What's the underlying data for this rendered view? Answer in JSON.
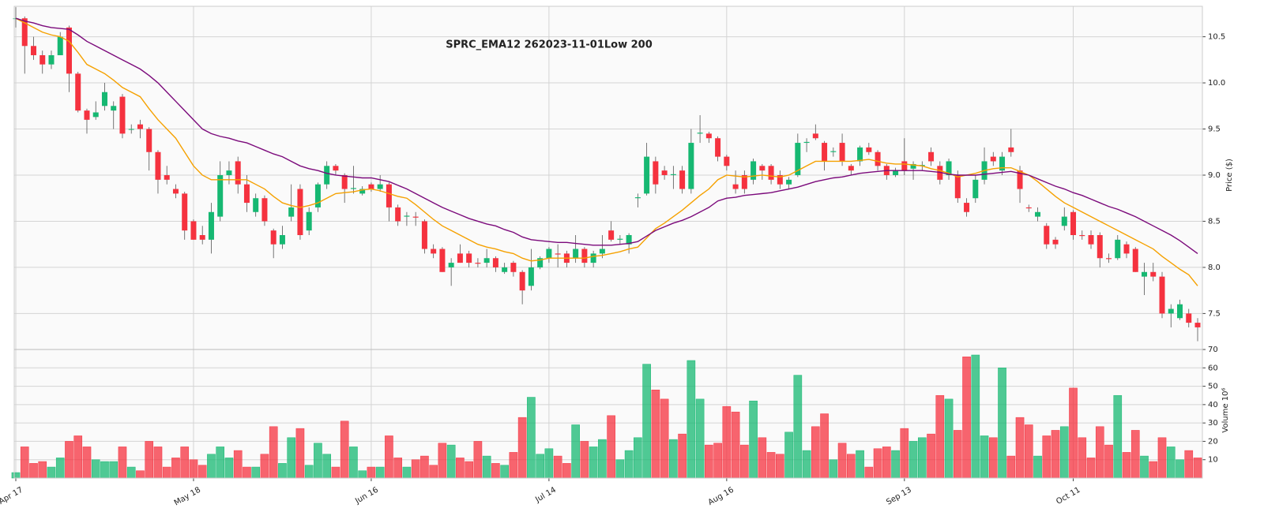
{
  "chart_data": {
    "type": "candlestick",
    "title": "SPRC_EMA12 262023-11-01Low 200",
    "ylabel": "Price ($)",
    "volume_ylabel": "Volume  10⁶",
    "up_color": "#16b872",
    "down_color": "#f5323f",
    "grid": true,
    "ylim": [
      7.11,
      10.83
    ],
    "yticks": [
      7.5,
      {
        "value": 8,
        "label": "8.0"
      },
      8.5,
      {
        "value": 9,
        "label": "9.0"
      },
      9.5,
      {
        "value": 10,
        "label": "10.0"
      },
      10.5
    ],
    "volume_lim": [
      0,
      70
    ],
    "volume_ticks": [
      10,
      20,
      30,
      40,
      50,
      60,
      70
    ],
    "categories": [
      "Apr 17",
      null,
      null,
      null,
      null,
      null,
      null,
      null,
      null,
      null,
      null,
      null,
      null,
      null,
      null,
      null,
      null,
      null,
      null,
      null,
      "May 18",
      null,
      null,
      null,
      null,
      null,
      null,
      null,
      null,
      null,
      null,
      null,
      null,
      null,
      null,
      null,
      null,
      null,
      null,
      null,
      "Jun 16",
      null,
      null,
      null,
      null,
      null,
      null,
      null,
      null,
      null,
      null,
      null,
      null,
      null,
      null,
      null,
      null,
      null,
      null,
      null,
      "Jul 14",
      null,
      null,
      null,
      null,
      null,
      null,
      null,
      null,
      null,
      null,
      null,
      null,
      null,
      null,
      null,
      null,
      null,
      null,
      null,
      "Aug 16",
      null,
      null,
      null,
      null,
      null,
      null,
      null,
      null,
      null,
      null,
      null,
      null,
      null,
      null,
      null,
      null,
      null,
      null,
      null,
      "Sep 13",
      null,
      null,
      null,
      null,
      null,
      null,
      null,
      null,
      null,
      null,
      null,
      null,
      null,
      null,
      null,
      null,
      null,
      null,
      "Oct 11",
      null,
      null,
      null,
      null,
      null,
      null,
      null,
      null,
      null,
      null,
      null,
      null,
      null,
      null
    ],
    "open": [
      10.7,
      10.7,
      10.4,
      10.3,
      10.2,
      10.3,
      10.6,
      10.1,
      9.7,
      9.63,
      9.75,
      9.7,
      9.85,
      9.5,
      9.55,
      9.5,
      9.25,
      9.0,
      8.85,
      8.8,
      8.5,
      8.35,
      8.3,
      8.55,
      9.0,
      9.15,
      8.9,
      8.6,
      8.75,
      8.4,
      8.25,
      8.55,
      8.85,
      8.4,
      8.65,
      8.9,
      9.1,
      9.0,
      8.85,
      8.8,
      8.9,
      8.85,
      8.9,
      8.65,
      8.55,
      8.55,
      8.5,
      8.2,
      8.2,
      8.0,
      8.15,
      8.15,
      8.05,
      8.05,
      8.1,
      7.95,
      8.05,
      7.95,
      7.8,
      8.0,
      8.1,
      8.15,
      8.15,
      8.1,
      8.2,
      8.05,
      8.15,
      8.4,
      8.3,
      8.25,
      8.75,
      8.8,
      9.15,
      9.05,
      9.0,
      9.05,
      8.85,
      9.45,
      9.45,
      9.4,
      9.2,
      8.9,
      9.0,
      8.95,
      9.1,
      9.1,
      9.0,
      8.9,
      9.0,
      9.35,
      9.45,
      9.35,
      9.25,
      9.35,
      9.1,
      9.15,
      9.3,
      9.25,
      9.1,
      9.0,
      9.15,
      9.07,
      9.1,
      9.25,
      9.1,
      9.0,
      9.0,
      8.7,
      8.75,
      8.95,
      9.2,
      9.05,
      9.3,
      9.05,
      8.65,
      8.55,
      8.45,
      8.3,
      8.45,
      8.6,
      8.35,
      8.35,
      8.35,
      8.1,
      8.1,
      8.25,
      8.2,
      7.9,
      7.95,
      7.9,
      7.5,
      7.45,
      7.5,
      7.4
    ],
    "high": [
      10.82,
      10.72,
      10.5,
      10.35,
      10.35,
      10.55,
      10.62,
      10.12,
      9.72,
      9.8,
      10.0,
      9.8,
      9.88,
      9.55,
      9.6,
      9.52,
      9.27,
      9.1,
      8.9,
      8.82,
      8.52,
      8.45,
      8.7,
      9.15,
      9.15,
      9.2,
      9.0,
      8.8,
      8.78,
      8.42,
      8.45,
      8.9,
      8.9,
      8.65,
      8.92,
      9.15,
      9.12,
      9.02,
      9.1,
      8.88,
      8.92,
      9.0,
      8.92,
      8.68,
      8.6,
      8.6,
      8.52,
      8.25,
      8.22,
      8.1,
      8.25,
      8.18,
      8.1,
      8.2,
      8.12,
      8.05,
      8.07,
      7.97,
      8.2,
      8.12,
      8.22,
      8.25,
      8.18,
      8.35,
      8.22,
      8.18,
      8.35,
      8.5,
      8.35,
      8.37,
      8.8,
      9.35,
      9.2,
      9.1,
      9.1,
      9.1,
      9.5,
      9.65,
      9.47,
      9.42,
      9.22,
      9.05,
      9.05,
      9.18,
      9.12,
      9.12,
      9.05,
      8.98,
      9.45,
      9.4,
      9.55,
      9.37,
      9.3,
      9.45,
      9.12,
      9.32,
      9.35,
      9.27,
      9.12,
      9.08,
      9.4,
      9.15,
      9.15,
      9.3,
      9.15,
      9.18,
      9.05,
      8.75,
      9.0,
      9.3,
      9.25,
      9.25,
      9.5,
      9.1,
      8.68,
      8.65,
      8.48,
      8.33,
      8.65,
      8.62,
      8.4,
      8.4,
      8.38,
      8.15,
      8.35,
      8.28,
      8.22,
      8.05,
      8.05,
      7.95,
      7.6,
      7.65,
      7.55,
      7.45
    ],
    "low": [
      10.6,
      10.1,
      10.25,
      10.1,
      10.15,
      10.3,
      9.9,
      9.68,
      9.45,
      9.6,
      9.7,
      9.5,
      9.4,
      9.45,
      9.4,
      9.05,
      8.8,
      8.9,
      8.75,
      8.3,
      8.3,
      8.25,
      8.15,
      8.5,
      8.9,
      8.8,
      8.6,
      8.55,
      8.45,
      8.1,
      8.2,
      8.5,
      8.3,
      8.35,
      8.6,
      8.85,
      9.0,
      8.7,
      8.8,
      8.78,
      8.82,
      8.82,
      8.5,
      8.45,
      8.45,
      8.45,
      8.15,
      8.1,
      7.95,
      7.8,
      8.05,
      8.0,
      8.0,
      8.0,
      7.95,
      7.93,
      7.9,
      7.6,
      7.75,
      7.98,
      8.05,
      8.0,
      8.0,
      8.05,
      8.0,
      8.0,
      8.1,
      8.28,
      8.25,
      8.15,
      8.65,
      8.78,
      8.8,
      8.95,
      8.85,
      8.8,
      8.8,
      9.35,
      9.35,
      9.15,
      9.05,
      8.8,
      8.8,
      8.9,
      8.95,
      8.9,
      8.85,
      8.85,
      8.98,
      9.25,
      9.38,
      9.05,
      9.2,
      9.1,
      9.0,
      9.1,
      9.22,
      9.05,
      8.95,
      8.98,
      9.0,
      8.95,
      9.05,
      9.1,
      8.9,
      8.95,
      8.7,
      8.55,
      8.7,
      8.9,
      9.1,
      9.0,
      9.2,
      8.7,
      8.6,
      8.5,
      8.2,
      8.2,
      8.4,
      8.3,
      8.3,
      8.2,
      8.0,
      8.05,
      8.08,
      8.1,
      7.95,
      7.7,
      7.85,
      7.45,
      7.35,
      7.43,
      7.35,
      7.2
    ],
    "close": [
      10.7,
      10.4,
      10.3,
      10.2,
      10.3,
      10.5,
      10.1,
      9.7,
      9.6,
      9.68,
      9.9,
      9.75,
      9.45,
      9.5,
      9.5,
      9.25,
      8.95,
      8.95,
      8.8,
      8.4,
      8.3,
      8.3,
      8.6,
      9.0,
      9.05,
      8.9,
      8.7,
      8.75,
      8.5,
      8.25,
      8.35,
      8.65,
      8.35,
      8.6,
      8.9,
      9.1,
      9.05,
      8.85,
      8.86,
      8.85,
      8.85,
      8.9,
      8.65,
      8.5,
      8.56,
      8.54,
      8.2,
      8.15,
      7.95,
      8.05,
      8.05,
      8.05,
      8.04,
      8.1,
      8.0,
      8.0,
      7.95,
      7.75,
      8.0,
      8.1,
      8.2,
      8.14,
      8.05,
      8.2,
      8.05,
      8.15,
      8.2,
      8.3,
      8.31,
      8.35,
      8.76,
      9.2,
      8.9,
      9.0,
      9.01,
      8.85,
      9.35,
      9.46,
      9.4,
      9.2,
      9.1,
      8.85,
      8.85,
      9.15,
      9.05,
      8.95,
      8.9,
      8.95,
      9.35,
      9.36,
      9.4,
      9.15,
      9.26,
      9.15,
      9.05,
      9.3,
      9.25,
      9.1,
      9.0,
      9.05,
      9.05,
      9.12,
      9.11,
      9.15,
      8.95,
      9.15,
      8.75,
      8.6,
      8.95,
      9.15,
      9.15,
      9.2,
      9.25,
      8.85,
      8.64,
      8.6,
      8.25,
      8.25,
      8.55,
      8.35,
      8.34,
      8.25,
      8.1,
      8.09,
      8.3,
      8.15,
      7.95,
      7.95,
      7.9,
      7.5,
      7.55,
      7.6,
      7.4,
      7.35
    ],
    "volume": [
      3,
      17,
      8,
      9,
      6,
      11,
      20,
      23,
      17,
      10,
      9,
      9,
      17,
      6,
      4,
      20,
      17,
      6,
      11,
      17,
      10,
      7,
      13,
      17,
      11,
      15,
      6,
      6,
      13,
      28,
      8,
      22,
      27,
      7,
      19,
      13,
      6,
      31,
      17,
      4,
      6,
      6,
      23,
      11,
      6,
      10,
      12,
      7,
      19,
      18,
      11,
      9,
      20,
      12,
      8,
      7,
      14,
      33,
      44,
      13,
      16,
      12,
      8,
      29,
      20,
      17,
      21,
      34,
      10,
      15,
      22,
      62,
      48,
      43,
      21,
      24,
      64,
      43,
      18,
      19,
      39,
      36,
      18,
      42,
      22,
      14,
      13,
      25,
      56,
      15,
      28,
      35,
      10,
      19,
      13,
      15,
      6,
      16,
      17,
      15,
      27,
      20,
      22,
      24,
      45,
      43,
      26,
      66,
      67,
      23,
      22,
      60,
      12,
      33,
      29,
      12,
      23,
      26,
      28,
      49,
      22,
      11,
      28,
      18,
      45,
      14,
      26,
      12,
      9,
      22,
      17,
      10,
      15,
      11
    ],
    "lines": [
      {
        "color": "#f5a100",
        "values": [
          10.7,
          10.65,
          10.6,
          10.55,
          10.52,
          10.5,
          10.45,
          10.33,
          10.2,
          10.15,
          10.1,
          10.03,
          9.95,
          9.9,
          9.85,
          9.72,
          9.6,
          9.5,
          9.4,
          9.25,
          9.1,
          9.0,
          8.95,
          8.95,
          8.95,
          8.95,
          8.95,
          8.9,
          8.85,
          8.77,
          8.7,
          8.67,
          8.65,
          8.67,
          8.7,
          8.75,
          8.8,
          8.81,
          8.82,
          8.84,
          8.85,
          8.83,
          8.8,
          8.77,
          8.75,
          8.68,
          8.6,
          8.52,
          8.45,
          8.4,
          8.35,
          8.3,
          8.25,
          8.22,
          8.2,
          8.17,
          8.15,
          8.1,
          8.07,
          8.08,
          8.1,
          8.1,
          8.1,
          8.1,
          8.1,
          8.12,
          8.13,
          8.15,
          8.17,
          8.2,
          8.22,
          8.32,
          8.42,
          8.48,
          8.55,
          8.62,
          8.7,
          8.78,
          8.85,
          8.95,
          9.0,
          8.99,
          8.98,
          8.99,
          9.0,
          8.99,
          8.98,
          9.0,
          9.05,
          9.1,
          9.15,
          9.15,
          9.15,
          9.15,
          9.15,
          9.16,
          9.17,
          9.15,
          9.13,
          9.12,
          9.12,
          9.11,
          9.1,
          9.07,
          9.05,
          9.02,
          8.98,
          9.0,
          9.02,
          9.05,
          9.07,
          9.08,
          9.08,
          9.04,
          9.0,
          8.93,
          8.85,
          8.77,
          8.7,
          8.65,
          8.6,
          8.55,
          8.5,
          8.45,
          8.4,
          8.35,
          8.3,
          8.25,
          8.2,
          8.12,
          8.05,
          7.98,
          7.92,
          7.8
        ]
      },
      {
        "color": "#7b0a7b",
        "values": [
          10.7,
          10.67,
          10.65,
          10.62,
          10.6,
          10.59,
          10.58,
          10.52,
          10.45,
          10.4,
          10.35,
          10.3,
          10.25,
          10.2,
          10.15,
          10.08,
          10.0,
          9.9,
          9.8,
          9.7,
          9.6,
          9.5,
          9.45,
          9.42,
          9.4,
          9.37,
          9.35,
          9.31,
          9.27,
          9.23,
          9.2,
          9.15,
          9.1,
          9.07,
          9.05,
          9.02,
          9.0,
          8.99,
          8.98,
          8.97,
          8.97,
          8.95,
          8.93,
          8.89,
          8.85,
          8.8,
          8.75,
          8.7,
          8.65,
          8.61,
          8.57,
          8.53,
          8.5,
          8.47,
          8.45,
          8.41,
          8.38,
          8.33,
          8.3,
          8.29,
          8.28,
          8.27,
          8.27,
          8.26,
          8.25,
          8.24,
          8.24,
          8.24,
          8.25,
          8.26,
          8.28,
          8.34,
          8.4,
          8.44,
          8.48,
          8.51,
          8.55,
          8.6,
          8.65,
          8.72,
          8.75,
          8.76,
          8.78,
          8.79,
          8.8,
          8.81,
          8.83,
          8.85,
          8.87,
          8.9,
          8.93,
          8.95,
          8.97,
          8.98,
          9.0,
          9.02,
          9.03,
          9.04,
          9.05,
          9.05,
          9.05,
          9.05,
          9.05,
          9.04,
          9.03,
          9.01,
          9.0,
          9.0,
          9.0,
          9.01,
          9.02,
          9.03,
          9.04,
          9.02,
          9.0,
          8.96,
          8.92,
          8.88,
          8.85,
          8.81,
          8.78,
          8.74,
          8.7,
          8.66,
          8.63,
          8.59,
          8.55,
          8.5,
          8.45,
          8.4,
          8.35,
          8.29,
          8.22,
          8.15
        ]
      }
    ]
  }
}
